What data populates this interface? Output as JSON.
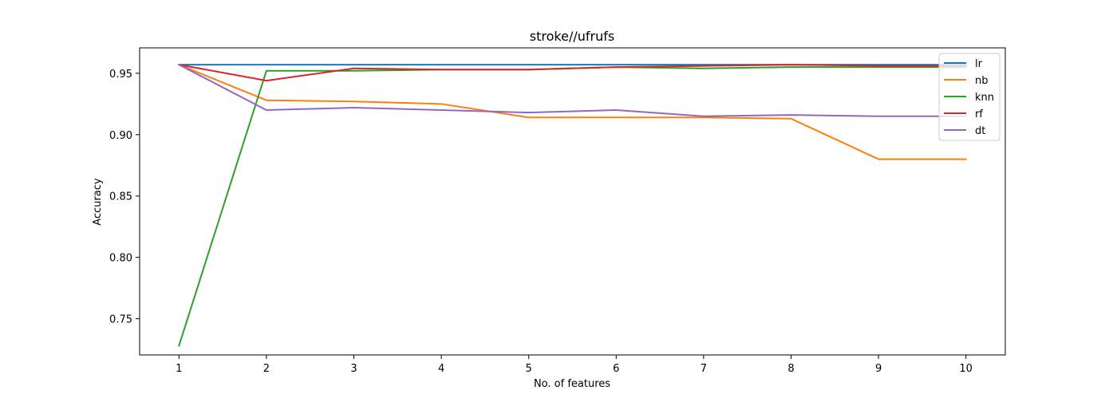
{
  "chart_data": {
    "type": "line",
    "title": "stroke//ufrufs",
    "xlabel": "No. of features",
    "ylabel": "Accuracy",
    "x": [
      1,
      2,
      3,
      4,
      5,
      6,
      7,
      8,
      9,
      10
    ],
    "xlim": [
      0.55,
      10.45
    ],
    "ylim": [
      0.7205,
      0.9707
    ],
    "xticks": [
      "1",
      "2",
      "3",
      "4",
      "5",
      "6",
      "7",
      "8",
      "9",
      "10"
    ],
    "yticks": [
      {
        "value": 0.75,
        "label": "0.75"
      },
      {
        "value": 0.8,
        "label": "0.80"
      },
      {
        "value": 0.85,
        "label": "0.85"
      },
      {
        "value": 0.9,
        "label": "0.90"
      },
      {
        "value": 0.95,
        "label": "0.95"
      }
    ],
    "grid": false,
    "legend_position": "top-right",
    "series": [
      {
        "name": "lr",
        "color": "#1f77b4",
        "values": [
          0.957,
          0.957,
          0.957,
          0.957,
          0.957,
          0.957,
          0.957,
          0.957,
          0.957,
          0.957
        ]
      },
      {
        "name": "nb",
        "color": "#ff7f0e",
        "values": [
          0.957,
          0.928,
          0.927,
          0.925,
          0.914,
          0.914,
          0.914,
          0.913,
          0.88,
          0.88
        ]
      },
      {
        "name": "knn",
        "color": "#2ca02c",
        "values": [
          0.728,
          0.952,
          0.952,
          0.953,
          0.953,
          0.955,
          0.954,
          0.955,
          0.955,
          0.955
        ]
      },
      {
        "name": "rf",
        "color": "#d62728",
        "values": [
          0.957,
          0.944,
          0.954,
          0.953,
          0.953,
          0.955,
          0.956,
          0.957,
          0.956,
          0.956
        ]
      },
      {
        "name": "dt",
        "color": "#9467bd",
        "values": [
          0.957,
          0.92,
          0.922,
          0.92,
          0.918,
          0.92,
          0.915,
          0.916,
          0.915,
          0.915
        ]
      }
    ]
  }
}
